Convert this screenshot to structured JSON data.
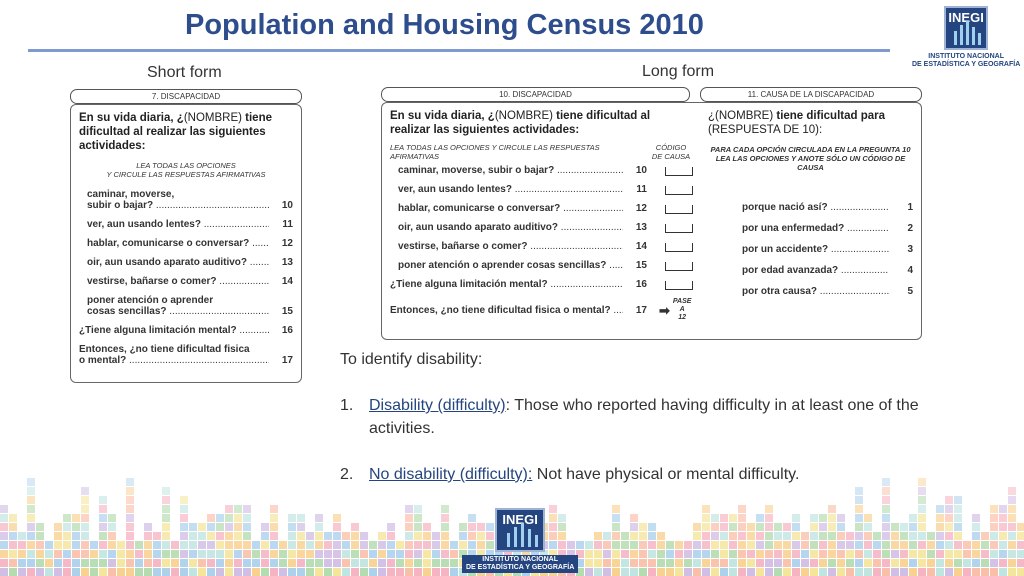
{
  "title": "Population and Housing Census 2010",
  "logo": {
    "mark": "INEGI",
    "line1": "INSTITUTO NACIONAL",
    "line2": "DE ESTADÍSTICA Y GEOGRAFÍA"
  },
  "short_form": {
    "label": "Short form",
    "header": "7. DISCAPACIDAD",
    "question_bold1": "En su vida diaria, ¿",
    "question_name": "(NOMBRE)",
    "question_bold2": " tiene dificultad al realizar las siguientes actividades:",
    "instruction1": "LEA TODAS LAS OPCIONES",
    "instruction2": "Y CIRCULE LAS RESPUESTAS AFIRMATIVAS",
    "items": [
      {
        "text": "caminar, moverse,",
        "text2": "subir o bajar?",
        "code": "10"
      },
      {
        "text": "ver, aun usando lentes?",
        "code": "11"
      },
      {
        "text": "hablar, comunicarse o conversar?",
        "code": "12"
      },
      {
        "text": "oir, aun usando aparato auditivo?",
        "code": "13"
      },
      {
        "text": "vestirse, bañarse o comer?",
        "code": "14"
      },
      {
        "text": "poner atención o aprender",
        "text2": "cosas sencillas?",
        "code": "15"
      },
      {
        "text": "¿Tiene alguna limitación mental?",
        "code": "16"
      },
      {
        "text": "Entonces, ¿no tiene dificultad fisica",
        "text2": "o mental?",
        "code": "17"
      }
    ]
  },
  "long_form": {
    "label": "Long form",
    "header": "10. DISCAPACIDAD",
    "question_bold1": "En su vida diaria, ¿",
    "question_name": "(NOMBRE)",
    "question_bold2": " tiene dificultad al realizar las siguientes actividades:",
    "instruction": "LEA TODAS LAS OPCIONES Y CIRCULE LAS RESPUESTAS AFIRMATIVAS",
    "code_header1": "CÓDIGO",
    "code_header2": "DE CAUSA",
    "items": [
      {
        "text": "caminar, moverse, subir o bajar?",
        "code": "10"
      },
      {
        "text": "ver, aun usando lentes?",
        "code": "11"
      },
      {
        "text": "hablar, comunicarse o conversar?",
        "code": "12"
      },
      {
        "text": "oir, aun usando aparato auditivo?",
        "code": "13"
      },
      {
        "text": "vestirse, bañarse o comer?",
        "code": "14"
      },
      {
        "text": "poner atención o aprender cosas sencillas?",
        "code": "15"
      },
      {
        "text": "¿Tiene alguna limitación mental?",
        "code": "16"
      },
      {
        "text": "Entonces, ¿no tiene dificultad fisica o mental?",
        "code": "17"
      }
    ],
    "pase1": "PASE",
    "pase2": "A",
    "pase3": "12"
  },
  "cause": {
    "header": "11. CAUSA DE LA DISCAPACIDAD",
    "q_open": "¿",
    "q_name": "(NOMBRE)",
    "q_bold": " tiene dificultad para",
    "q_sub": "(RESPUESTA DE 10):",
    "instruction1": "PARA CADA OPCIÓN CIRCULADA EN LA PREGUNTA 10",
    "instruction2": "LEA LAS OPCIONES Y ANOTE SÓLO UN CÓDIGO DE CAUSA",
    "items": [
      {
        "text": "porque nació así?",
        "code": "1"
      },
      {
        "text": "por una enfermedad?",
        "code": "2"
      },
      {
        "text": "por un accidente?",
        "code": "3"
      },
      {
        "text": "por edad avanzada?",
        "code": "4"
      },
      {
        "text": "por otra causa?",
        "code": "5"
      }
    ]
  },
  "notes": {
    "intro": "To identify disability:",
    "item1_num": "1.",
    "item1_term": "Disability (difficulty)",
    "item1_rest": ": Those who reported having difficulty in at least one of the activities.",
    "item2_num": "2.",
    "item2_term": "No disability (difficulty):",
    "item2_rest": " Not have physical or mental difficulty."
  },
  "colors": {
    "title": "#2e4d8c",
    "rule": "#7d9bcf",
    "logo": "#24457f"
  }
}
